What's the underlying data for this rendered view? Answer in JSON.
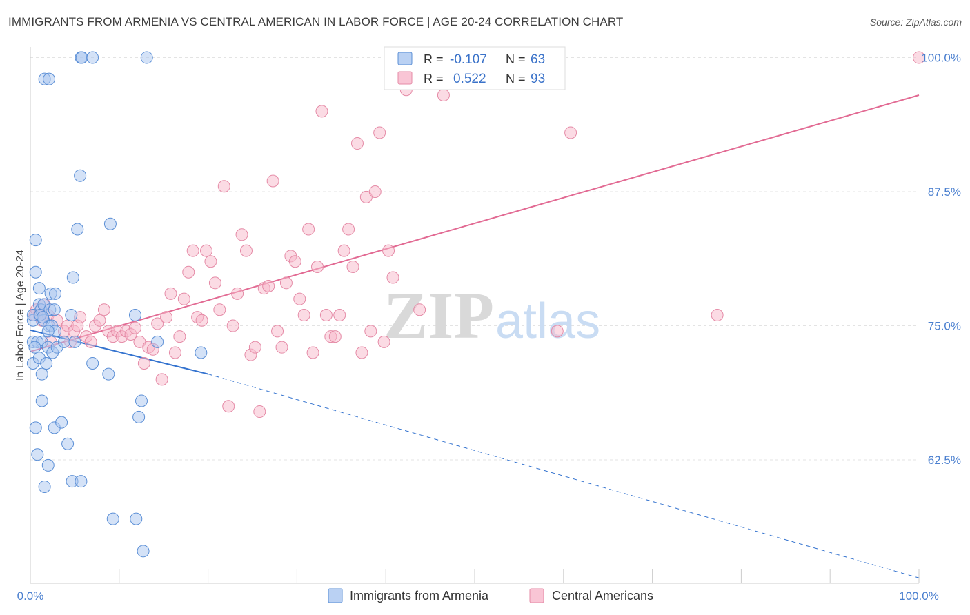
{
  "title": "IMMIGRANTS FROM ARMENIA VS CENTRAL AMERICAN IN LABOR FORCE | AGE 20-24 CORRELATION CHART",
  "source": "Source: ZipAtlas.com",
  "watermark": {
    "zip": "ZIP",
    "atlas": "atlas"
  },
  "legend_top": [
    {
      "r_label": "R =",
      "r_value": "-0.107",
      "n_label": "N =",
      "n_value": "63",
      "color": "#a9c6f0"
    },
    {
      "r_label": "R =",
      "r_value": "0.522",
      "n_label": "N =",
      "n_value": "93",
      "color": "#f7b7ca"
    }
  ],
  "colors": {
    "armenia_fill": "#a9c6f0",
    "armenia_stroke": "#5b8fd6",
    "armenia_line": "#3473cf",
    "central_fill": "#f7b7ca",
    "central_stroke": "#e58aa6",
    "central_line": "#e26a93",
    "axis_text": "#4a7fcf",
    "grid": "#e3e3e3"
  },
  "chart_data": {
    "type": "scatter",
    "title": "IMMIGRANTS FROM ARMENIA VS CENTRAL AMERICAN IN LABOR FORCE | AGE 20-24 CORRELATION CHART",
    "xlabel": "",
    "ylabel": "In Labor Force | Age 20-24",
    "xlim": [
      0,
      100
    ],
    "ylim": [
      51,
      101
    ],
    "x_tick_labels": [
      "0.0%",
      "100.0%"
    ],
    "y_ticks": [
      62.5,
      75.0,
      87.5,
      100.0
    ],
    "y_tick_labels": [
      "62.5%",
      "75.0%",
      "87.5%",
      "100.0%"
    ],
    "grid": "horizontal dashed",
    "legend": "bottom-center",
    "series": [
      {
        "name": "Immigrants from Armenia",
        "trend": {
          "x0": 0,
          "y0": 74.6,
          "x1": 20,
          "y1": 70.5,
          "dashed_to_x": 100,
          "dashed_to_y": 51.5
        },
        "points": [
          [
            0.3,
            75.5
          ],
          [
            0.3,
            76.0
          ],
          [
            0.3,
            73.5
          ],
          [
            0.3,
            71.5
          ],
          [
            0.6,
            80.0
          ],
          [
            0.6,
            83.0
          ],
          [
            0.6,
            65.5
          ],
          [
            0.8,
            63.0
          ],
          [
            1.0,
            77.0
          ],
          [
            1.0,
            72.0
          ],
          [
            1.0,
            78.5
          ],
          [
            1.2,
            76.5
          ],
          [
            1.3,
            73.5
          ],
          [
            1.3,
            70.5
          ],
          [
            1.3,
            68.0
          ],
          [
            1.5,
            75.5
          ],
          [
            1.5,
            77.0
          ],
          [
            1.6,
            60.0
          ],
          [
            1.6,
            98.0
          ],
          [
            1.8,
            71.5
          ],
          [
            2.0,
            62.0
          ],
          [
            2.0,
            73.0
          ],
          [
            2.1,
            75.0
          ],
          [
            2.1,
            98.0
          ],
          [
            2.2,
            76.5
          ],
          [
            2.3,
            78.0
          ],
          [
            2.4,
            75.0
          ],
          [
            2.5,
            72.5
          ],
          [
            2.7,
            65.5
          ],
          [
            2.7,
            76.5
          ],
          [
            2.8,
            74.5
          ],
          [
            2.8,
            78.0
          ],
          [
            3.0,
            73.0
          ],
          [
            3.5,
            66.0
          ],
          [
            3.8,
            73.5
          ],
          [
            4.2,
            64.0
          ],
          [
            4.6,
            76.0
          ],
          [
            4.7,
            60.5
          ],
          [
            4.8,
            79.5
          ],
          [
            5.0,
            73.5
          ],
          [
            5.3,
            84.0
          ],
          [
            5.6,
            89.0
          ],
          [
            5.7,
            60.5
          ],
          [
            5.7,
            100.0
          ],
          [
            5.8,
            100.0
          ],
          [
            7.0,
            100.0
          ],
          [
            7.0,
            71.5
          ],
          [
            8.8,
            70.5
          ],
          [
            9.3,
            57.0
          ],
          [
            9.0,
            84.5
          ],
          [
            11.8,
            76.0
          ],
          [
            11.9,
            57.0
          ],
          [
            12.2,
            66.5
          ],
          [
            12.5,
            68.0
          ],
          [
            12.7,
            54.0
          ],
          [
            13.1,
            100.0
          ],
          [
            14.3,
            73.5
          ],
          [
            19.2,
            72.5
          ],
          [
            0.8,
            73.5
          ],
          [
            1.1,
            76.0
          ],
          [
            2.0,
            74.5
          ],
          [
            0.5,
            73.0
          ],
          [
            1.4,
            75.8
          ]
        ]
      },
      {
        "name": "Central Americans",
        "trend": {
          "x0": 0,
          "y0": 72.6,
          "x1": 100,
          "y1": 96.5
        },
        "points": [
          [
            0.5,
            76.0
          ],
          [
            0.7,
            76.5
          ],
          [
            1.0,
            76.0
          ],
          [
            1.3,
            75.5
          ],
          [
            1.6,
            77.0
          ],
          [
            2.0,
            76.0
          ],
          [
            2.3,
            73.5
          ],
          [
            3.0,
            75.5
          ],
          [
            3.8,
            74.5
          ],
          [
            4.2,
            75.0
          ],
          [
            4.5,
            73.5
          ],
          [
            4.9,
            74.5
          ],
          [
            5.3,
            75.0
          ],
          [
            5.6,
            75.8
          ],
          [
            6.3,
            74.0
          ],
          [
            6.8,
            73.5
          ],
          [
            7.3,
            75.0
          ],
          [
            7.8,
            75.5
          ],
          [
            8.3,
            76.5
          ],
          [
            8.8,
            74.5
          ],
          [
            9.3,
            74.0
          ],
          [
            9.8,
            74.5
          ],
          [
            10.3,
            74.0
          ],
          [
            10.8,
            74.5
          ],
          [
            11.3,
            74.2
          ],
          [
            11.8,
            74.8
          ],
          [
            12.3,
            73.5
          ],
          [
            12.8,
            71.5
          ],
          [
            13.3,
            73.0
          ],
          [
            13.8,
            72.8
          ],
          [
            14.3,
            75.2
          ],
          [
            14.8,
            70.0
          ],
          [
            15.3,
            75.8
          ],
          [
            15.8,
            78.0
          ],
          [
            16.3,
            72.5
          ],
          [
            16.8,
            74.0
          ],
          [
            17.3,
            77.5
          ],
          [
            17.8,
            80.0
          ],
          [
            18.3,
            82.0
          ],
          [
            18.8,
            75.8
          ],
          [
            19.3,
            75.5
          ],
          [
            19.8,
            82.0
          ],
          [
            20.3,
            81.0
          ],
          [
            20.8,
            79.0
          ],
          [
            21.3,
            76.5
          ],
          [
            21.8,
            88.0
          ],
          [
            22.3,
            67.5
          ],
          [
            22.8,
            75.0
          ],
          [
            23.3,
            78.0
          ],
          [
            23.8,
            83.5
          ],
          [
            24.3,
            82.0
          ],
          [
            24.8,
            72.3
          ],
          [
            25.3,
            73.0
          ],
          [
            25.8,
            67.0
          ],
          [
            26.3,
            78.5
          ],
          [
            26.8,
            78.7
          ],
          [
            27.3,
            88.5
          ],
          [
            27.8,
            74.5
          ],
          [
            28.3,
            73.0
          ],
          [
            28.8,
            79.0
          ],
          [
            29.3,
            81.5
          ],
          [
            29.8,
            81.0
          ],
          [
            30.3,
            77.5
          ],
          [
            30.8,
            76.0
          ],
          [
            31.3,
            84.0
          ],
          [
            31.8,
            72.5
          ],
          [
            32.3,
            80.5
          ],
          [
            32.8,
            95.0
          ],
          [
            33.3,
            76.0
          ],
          [
            33.8,
            74.0
          ],
          [
            34.3,
            74.0
          ],
          [
            34.8,
            76.0
          ],
          [
            35.3,
            82.0
          ],
          [
            35.8,
            84.0
          ],
          [
            36.3,
            80.5
          ],
          [
            36.8,
            92.0
          ],
          [
            37.3,
            72.5
          ],
          [
            37.8,
            87.0
          ],
          [
            38.3,
            74.5
          ],
          [
            38.8,
            87.5
          ],
          [
            39.3,
            93.0
          ],
          [
            39.8,
            73.5
          ],
          [
            40.3,
            82.0
          ],
          [
            40.8,
            79.5
          ],
          [
            42.3,
            97.0
          ],
          [
            43.3,
            100.0
          ],
          [
            43.8,
            76.5
          ],
          [
            46.5,
            96.5
          ],
          [
            56.3,
            100.0
          ],
          [
            59.3,
            74.5
          ],
          [
            60.8,
            93.0
          ],
          [
            77.3,
            76.0
          ],
          [
            100.0,
            100.0
          ]
        ]
      }
    ]
  },
  "bottom_legend": [
    {
      "label": "Immigrants from Armenia"
    },
    {
      "label": "Central Americans"
    }
  ]
}
